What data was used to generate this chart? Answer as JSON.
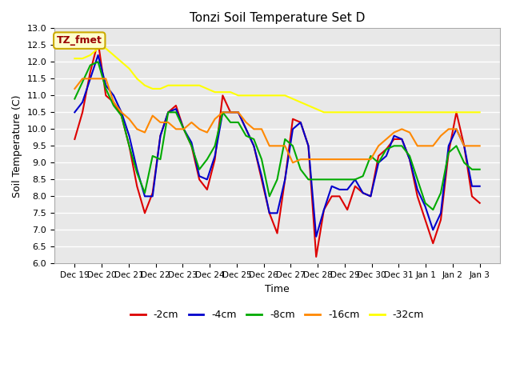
{
  "title": "Tonzi Soil Temperature Set D",
  "xlabel": "Time",
  "ylabel": "Soil Temperature (C)",
  "ylim": [
    6.0,
    13.0
  ],
  "yticks": [
    6.0,
    6.5,
    7.0,
    7.5,
    8.0,
    8.5,
    9.0,
    9.5,
    10.0,
    10.5,
    11.0,
    11.5,
    12.0,
    12.5,
    13.0
  ],
  "xtick_labels": [
    "Dec 19",
    "Dec 20",
    "Dec 21",
    "Dec 22",
    "Dec 23",
    "Dec 24",
    "Dec 25",
    "Dec 26",
    "Dec 27",
    "Dec 28",
    "Dec 29",
    "Dec 30",
    "Dec 31",
    "Jan 1",
    "Jan 2",
    "Jan 3"
  ],
  "annotation_text": "TZ_fmet",
  "annotation_bg": "#ffffcc",
  "annotation_border": "#ccaa00",
  "annotation_text_color": "#990000",
  "colors": {
    "-2cm": "#dd0000",
    "-4cm": "#0000cc",
    "-8cm": "#00aa00",
    "-16cm": "#ff8800",
    "-32cm": "#ffff00"
  },
  "line_width": 1.5,
  "figure_bg": "#ffffff",
  "plot_bg_color": "#e8e8e8",
  "grid_color": "#d0d0d0",
  "series": {
    "-2cm": [
      9.7,
      10.5,
      11.7,
      12.6,
      11.0,
      10.8,
      10.4,
      9.5,
      8.3,
      7.5,
      8.1,
      9.8,
      10.5,
      10.7,
      10.0,
      9.5,
      8.5,
      8.2,
      9.1,
      11.0,
      10.5,
      10.5,
      10.0,
      9.5,
      8.5,
      7.5,
      6.9,
      8.5,
      10.3,
      10.2,
      9.5,
      6.2,
      7.6,
      8.0,
      8.0,
      7.6,
      8.3,
      8.1,
      8.0,
      9.2,
      9.4,
      9.7,
      9.7,
      9.1,
      8.0,
      7.3,
      6.6,
      7.3,
      9.3,
      10.5,
      9.5,
      8.0,
      7.8
    ],
    "-4cm": [
      10.5,
      10.8,
      11.5,
      12.2,
      11.3,
      11.0,
      10.5,
      9.8,
      8.8,
      8.0,
      8.0,
      9.8,
      10.5,
      10.6,
      10.0,
      9.6,
      8.6,
      8.5,
      9.2,
      10.5,
      10.5,
      10.5,
      10.0,
      9.5,
      8.6,
      7.5,
      7.5,
      8.5,
      10.0,
      10.2,
      9.5,
      6.8,
      7.6,
      8.3,
      8.2,
      8.2,
      8.5,
      8.1,
      8.0,
      9.0,
      9.2,
      9.8,
      9.7,
      9.1,
      8.2,
      7.7,
      7.0,
      7.5,
      9.5,
      10.0,
      9.5,
      8.3,
      8.3
    ],
    "-8cm": [
      10.9,
      11.4,
      11.9,
      12.0,
      11.2,
      10.7,
      10.4,
      9.5,
      8.7,
      8.1,
      9.2,
      9.1,
      10.5,
      10.5,
      10.0,
      9.5,
      8.8,
      9.1,
      9.5,
      10.5,
      10.2,
      10.2,
      9.8,
      9.7,
      9.1,
      8.0,
      8.5,
      9.7,
      9.5,
      8.8,
      8.5,
      8.5,
      8.5,
      8.5,
      8.5,
      8.5,
      8.5,
      8.6,
      9.2,
      9.0,
      9.4,
      9.5,
      9.5,
      9.2,
      8.5,
      7.8,
      7.6,
      8.1,
      9.3,
      9.5,
      9.0,
      8.8,
      8.8
    ],
    "-16cm": [
      11.2,
      11.5,
      11.5,
      11.5,
      11.5,
      10.8,
      10.5,
      10.3,
      10.0,
      9.9,
      10.4,
      10.2,
      10.2,
      10.0,
      10.0,
      10.2,
      10.0,
      9.9,
      10.3,
      10.5,
      10.5,
      10.5,
      10.2,
      10.0,
      10.0,
      9.5,
      9.5,
      9.5,
      9.0,
      9.1,
      9.1,
      9.1,
      9.1,
      9.1,
      9.1,
      9.1,
      9.1,
      9.1,
      9.1,
      9.5,
      9.7,
      9.9,
      10.0,
      9.9,
      9.5,
      9.5,
      9.5,
      9.8,
      10.0,
      10.0,
      9.5,
      9.5,
      9.5
    ],
    "-32cm": [
      12.1,
      12.1,
      12.2,
      12.4,
      12.4,
      12.2,
      12.0,
      11.8,
      11.5,
      11.3,
      11.2,
      11.2,
      11.3,
      11.3,
      11.3,
      11.3,
      11.3,
      11.2,
      11.1,
      11.1,
      11.1,
      11.0,
      11.0,
      11.0,
      11.0,
      11.0,
      11.0,
      11.0,
      10.9,
      10.8,
      10.7,
      10.6,
      10.5,
      10.5,
      10.5,
      10.5,
      10.5,
      10.5,
      10.5,
      10.5,
      10.5,
      10.5,
      10.5,
      10.5,
      10.5,
      10.5,
      10.5,
      10.5,
      10.5,
      10.5,
      10.5,
      10.5,
      10.5
    ]
  }
}
